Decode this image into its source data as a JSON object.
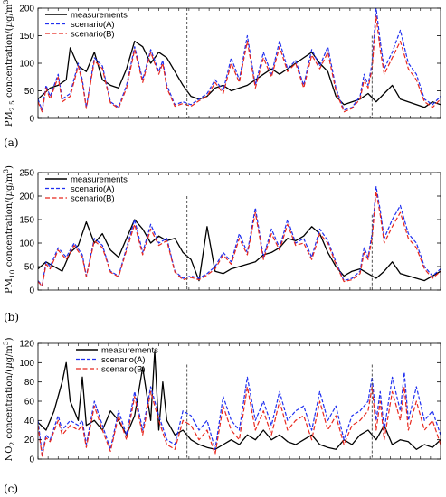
{
  "panel_labels": [
    "(a)",
    "(b)",
    "(c)"
  ],
  "colors": {
    "measurements": "#000000",
    "scenarioA": "#1f2ff0",
    "scenarioB": "#e8281e",
    "divider": "#555555"
  },
  "chart_data": [
    {
      "type": "line",
      "ylabel": "PM2.5 concentration/(μg/m³)",
      "ylabel_parts": {
        "species": "PM",
        "sub": "2.5",
        "rest": " concentration/(",
        "mu": "μ",
        "unit": "g/m",
        "sup": "3",
        "close": ")"
      },
      "ylim": [
        0,
        200
      ],
      "yticks": [
        "0",
        "50",
        "100",
        "150",
        "200"
      ],
      "x_range": [
        0,
        100
      ],
      "legend": [
        "measurements",
        "scenario(A)",
        "scenario(B)"
      ],
      "legend_position": "top-left",
      "dividers": [
        {
          "x": 37,
          "y": 200
        },
        {
          "x": 83,
          "y": 150
        }
      ],
      "series": [
        {
          "name": "measurements",
          "style": "solid",
          "x": [
            0,
            3,
            5,
            7,
            8,
            10,
            12,
            14,
            16,
            18,
            20,
            22,
            24,
            26,
            28,
            30,
            32,
            34,
            36,
            38,
            40,
            42,
            44,
            46,
            48,
            50,
            52,
            54,
            56,
            58,
            60,
            62,
            64,
            66,
            68,
            70,
            72,
            74,
            76,
            78,
            80,
            82,
            84,
            86,
            88,
            90,
            92,
            94,
            96,
            98,
            100
          ],
          "y": [
            35,
            55,
            60,
            70,
            128,
            95,
            85,
            120,
            70,
            60,
            55,
            90,
            140,
            130,
            100,
            120,
            110,
            85,
            60,
            40,
            35,
            40,
            55,
            60,
            50,
            55,
            60,
            70,
            80,
            90,
            80,
            90,
            100,
            110,
            120,
            100,
            85,
            40,
            25,
            30,
            35,
            45,
            30,
            45,
            60,
            35,
            30,
            25,
            20,
            30,
            25
          ]
        },
        {
          "name": "scenario(A)",
          "style": "dash",
          "x": [
            0,
            1,
            2,
            3,
            5,
            6,
            8,
            10,
            11,
            12,
            14,
            16,
            18,
            20,
            22,
            24,
            26,
            28,
            30,
            31,
            32,
            34,
            36,
            38,
            40,
            42,
            44,
            46,
            48,
            50,
            52,
            54,
            56,
            58,
            60,
            62,
            64,
            66,
            68,
            70,
            72,
            74,
            76,
            78,
            80,
            81,
            82,
            83,
            84,
            85,
            86,
            88,
            90,
            92,
            94,
            96,
            98,
            100
          ],
          "y": [
            35,
            15,
            60,
            40,
            80,
            35,
            45,
            100,
            70,
            20,
            110,
            95,
            30,
            20,
            60,
            130,
            70,
            125,
            85,
            105,
            60,
            25,
            30,
            25,
            35,
            45,
            70,
            50,
            110,
            70,
            150,
            60,
            120,
            80,
            140,
            90,
            105,
            60,
            125,
            95,
            130,
            55,
            15,
            20,
            40,
            80,
            60,
            100,
            200,
            140,
            90,
            120,
            160,
            100,
            80,
            35,
            25,
            40
          ]
        },
        {
          "name": "scenario(B)",
          "style": "dash",
          "x": [
            0,
            1,
            2,
            3,
            5,
            6,
            8,
            10,
            11,
            12,
            14,
            16,
            18,
            20,
            22,
            24,
            26,
            28,
            30,
            31,
            32,
            34,
            36,
            38,
            40,
            42,
            44,
            46,
            48,
            50,
            52,
            54,
            56,
            58,
            60,
            62,
            64,
            66,
            68,
            70,
            72,
            74,
            76,
            78,
            80,
            81,
            82,
            83,
            84,
            85,
            86,
            88,
            90,
            92,
            94,
            96,
            98,
            100
          ],
          "y": [
            30,
            12,
            55,
            35,
            75,
            30,
            40,
            95,
            65,
            18,
            105,
            90,
            28,
            18,
            55,
            125,
            65,
            120,
            80,
            100,
            55,
            22,
            27,
            22,
            32,
            40,
            65,
            45,
            100,
            65,
            140,
            55,
            110,
            75,
            130,
            85,
            100,
            55,
            115,
            90,
            120,
            50,
            12,
            18,
            35,
            70,
            55,
            90,
            185,
            125,
            80,
            110,
            140,
            90,
            70,
            30,
            20,
            35
          ]
        }
      ]
    },
    {
      "type": "line",
      "ylabel": "PM10 concentration/(μg/m³)",
      "ylabel_parts": {
        "species": "PM",
        "sub": "10",
        "rest": " concentration/(",
        "mu": "μ",
        "unit": "g/m",
        "sup": "3",
        "close": ")"
      },
      "ylim": [
        0,
        250
      ],
      "yticks": [
        "0",
        "50",
        "100",
        "150",
        "200",
        "250"
      ],
      "x_range": [
        0,
        100
      ],
      "legend": [
        "measurements",
        "scenario(A)",
        "scenario(B)"
      ],
      "legend_position": "top-left",
      "dividers": [
        {
          "x": 37,
          "y": 200
        },
        {
          "x": 83,
          "y": 160
        }
      ],
      "series": [
        {
          "name": "measurements",
          "style": "solid",
          "x": [
            0,
            2,
            4,
            6,
            8,
            10,
            12,
            14,
            16,
            18,
            20,
            22,
            24,
            26,
            28,
            30,
            32,
            34,
            36,
            38,
            40,
            42,
            44,
            46,
            48,
            50,
            52,
            54,
            56,
            58,
            60,
            62,
            64,
            66,
            68,
            70,
            72,
            74,
            76,
            78,
            80,
            82,
            84,
            86,
            88,
            90,
            92,
            94,
            96,
            98,
            100
          ],
          "y": [
            45,
            60,
            50,
            40,
            80,
            95,
            145,
            100,
            120,
            85,
            70,
            110,
            150,
            130,
            100,
            115,
            105,
            110,
            80,
            65,
            20,
            135,
            40,
            35,
            45,
            50,
            55,
            60,
            75,
            80,
            90,
            110,
            105,
            115,
            135,
            120,
            80,
            50,
            30,
            40,
            45,
            35,
            25,
            40,
            60,
            35,
            30,
            25,
            20,
            30,
            40
          ]
        },
        {
          "name": "scenario(A)",
          "style": "dash",
          "x": [
            0,
            1,
            2,
            3,
            5,
            7,
            9,
            11,
            12,
            14,
            16,
            18,
            20,
            22,
            24,
            26,
            28,
            30,
            32,
            34,
            36,
            38,
            40,
            42,
            44,
            46,
            48,
            50,
            52,
            54,
            56,
            58,
            60,
            62,
            64,
            66,
            68,
            70,
            72,
            74,
            76,
            78,
            80,
            81,
            82,
            83,
            84,
            85,
            86,
            88,
            90,
            92,
            94,
            96,
            98,
            100
          ],
          "y": [
            20,
            10,
            60,
            50,
            90,
            70,
            100,
            75,
            30,
            110,
            95,
            40,
            30,
            90,
            150,
            80,
            140,
            100,
            110,
            40,
            25,
            30,
            25,
            35,
            50,
            80,
            60,
            120,
            80,
            175,
            70,
            130,
            90,
            150,
            100,
            110,
            70,
            130,
            105,
            60,
            20,
            25,
            40,
            90,
            70,
            120,
            220,
            170,
            110,
            150,
            180,
            120,
            100,
            50,
            30,
            45
          ]
        },
        {
          "name": "scenario(B)",
          "style": "dash",
          "x": [
            0,
            1,
            2,
            3,
            5,
            7,
            9,
            11,
            12,
            14,
            16,
            18,
            20,
            22,
            24,
            26,
            28,
            30,
            32,
            34,
            36,
            38,
            40,
            42,
            44,
            46,
            48,
            50,
            52,
            54,
            56,
            58,
            60,
            62,
            64,
            66,
            68,
            70,
            72,
            74,
            76,
            78,
            80,
            81,
            82,
            83,
            84,
            85,
            86,
            88,
            90,
            92,
            94,
            96,
            98,
            100
          ],
          "y": [
            18,
            8,
            55,
            45,
            85,
            65,
            95,
            70,
            28,
            105,
            90,
            38,
            28,
            85,
            140,
            75,
            130,
            95,
            105,
            38,
            22,
            27,
            22,
            32,
            45,
            75,
            55,
            110,
            75,
            165,
            65,
            120,
            85,
            140,
            95,
            100,
            65,
            120,
            100,
            55,
            18,
            22,
            35,
            80,
            65,
            110,
            210,
            160,
            100,
            135,
            165,
            110,
            90,
            45,
            25,
            40
          ]
        }
      ]
    },
    {
      "type": "line",
      "ylabel": "NO2 concentration/(μg/m³)",
      "ylabel_parts": {
        "species": "NO",
        "sub": "2",
        "rest": " concentration/(",
        "mu": "μ",
        "unit": "g/m",
        "sup": "3",
        "close": ")"
      },
      "ylim": [
        0,
        120
      ],
      "yticks": [
        "0",
        "20",
        "40",
        "60",
        "80",
        "100",
        "120"
      ],
      "x_range": [
        0,
        100
      ],
      "legend": [
        "measurements",
        "scenario(A)",
        "scenario(B)"
      ],
      "legend_position": "top-center",
      "dividers": [
        {
          "x": 37,
          "y": 98
        },
        {
          "x": 83,
          "y": 98
        }
      ],
      "series": [
        {
          "name": "measurements",
          "style": "solid",
          "x": [
            0,
            2,
            4,
            6,
            7,
            8,
            10,
            11,
            12,
            14,
            16,
            18,
            20,
            22,
            24,
            26,
            28,
            29,
            30,
            31,
            32,
            34,
            36,
            38,
            40,
            42,
            44,
            46,
            48,
            50,
            52,
            54,
            56,
            58,
            60,
            62,
            64,
            66,
            68,
            70,
            72,
            74,
            76,
            78,
            80,
            82,
            84,
            86,
            88,
            90,
            92,
            94,
            96,
            98,
            100
          ],
          "y": [
            38,
            30,
            50,
            80,
            100,
            60,
            40,
            85,
            35,
            40,
            30,
            50,
            40,
            25,
            45,
            95,
            40,
            112,
            30,
            80,
            40,
            25,
            30,
            20,
            15,
            12,
            10,
            15,
            20,
            15,
            25,
            20,
            30,
            20,
            25,
            18,
            15,
            20,
            25,
            15,
            12,
            10,
            20,
            15,
            25,
            30,
            20,
            35,
            15,
            20,
            18,
            10,
            15,
            12,
            20
          ]
        },
        {
          "name": "scenario(A)",
          "style": "dash",
          "x": [
            0,
            1,
            2,
            3,
            5,
            6,
            8,
            10,
            11,
            12,
            14,
            16,
            18,
            20,
            22,
            24,
            26,
            28,
            30,
            32,
            34,
            36,
            38,
            40,
            42,
            44,
            46,
            48,
            50,
            52,
            54,
            56,
            58,
            60,
            62,
            64,
            66,
            68,
            70,
            72,
            74,
            76,
            78,
            80,
            82,
            83,
            84,
            85,
            86,
            88,
            90,
            91,
            92,
            94,
            96,
            98,
            100
          ],
          "y": [
            40,
            5,
            25,
            20,
            45,
            30,
            40,
            35,
            40,
            15,
            60,
            35,
            10,
            50,
            25,
            70,
            30,
            75,
            45,
            20,
            15,
            50,
            45,
            30,
            40,
            10,
            65,
            40,
            30,
            85,
            40,
            60,
            35,
            70,
            40,
            50,
            55,
            30,
            70,
            40,
            55,
            20,
            45,
            50,
            60,
            85,
            40,
            70,
            30,
            85,
            50,
            90,
            40,
            75,
            40,
            50,
            25
          ]
        },
        {
          "name": "scenario(B)",
          "style": "dash",
          "x": [
            0,
            1,
            2,
            3,
            5,
            6,
            8,
            10,
            11,
            12,
            14,
            16,
            18,
            20,
            22,
            24,
            26,
            28,
            30,
            32,
            34,
            36,
            38,
            40,
            42,
            44,
            46,
            48,
            50,
            52,
            54,
            56,
            58,
            60,
            62,
            64,
            66,
            68,
            70,
            72,
            74,
            76,
            78,
            80,
            82,
            83,
            84,
            85,
            86,
            88,
            90,
            91,
            92,
            94,
            96,
            98,
            100
          ],
          "y": [
            35,
            3,
            22,
            18,
            40,
            25,
            35,
            30,
            35,
            12,
            55,
            30,
            8,
            45,
            20,
            65,
            25,
            70,
            40,
            15,
            10,
            40,
            35,
            20,
            30,
            5,
            55,
            30,
            20,
            75,
            30,
            50,
            25,
            60,
            30,
            40,
            45,
            20,
            60,
            30,
            45,
            15,
            35,
            40,
            50,
            75,
            30,
            60,
            20,
            70,
            40,
            75,
            30,
            60,
            30,
            40,
            15
          ]
        }
      ]
    }
  ]
}
